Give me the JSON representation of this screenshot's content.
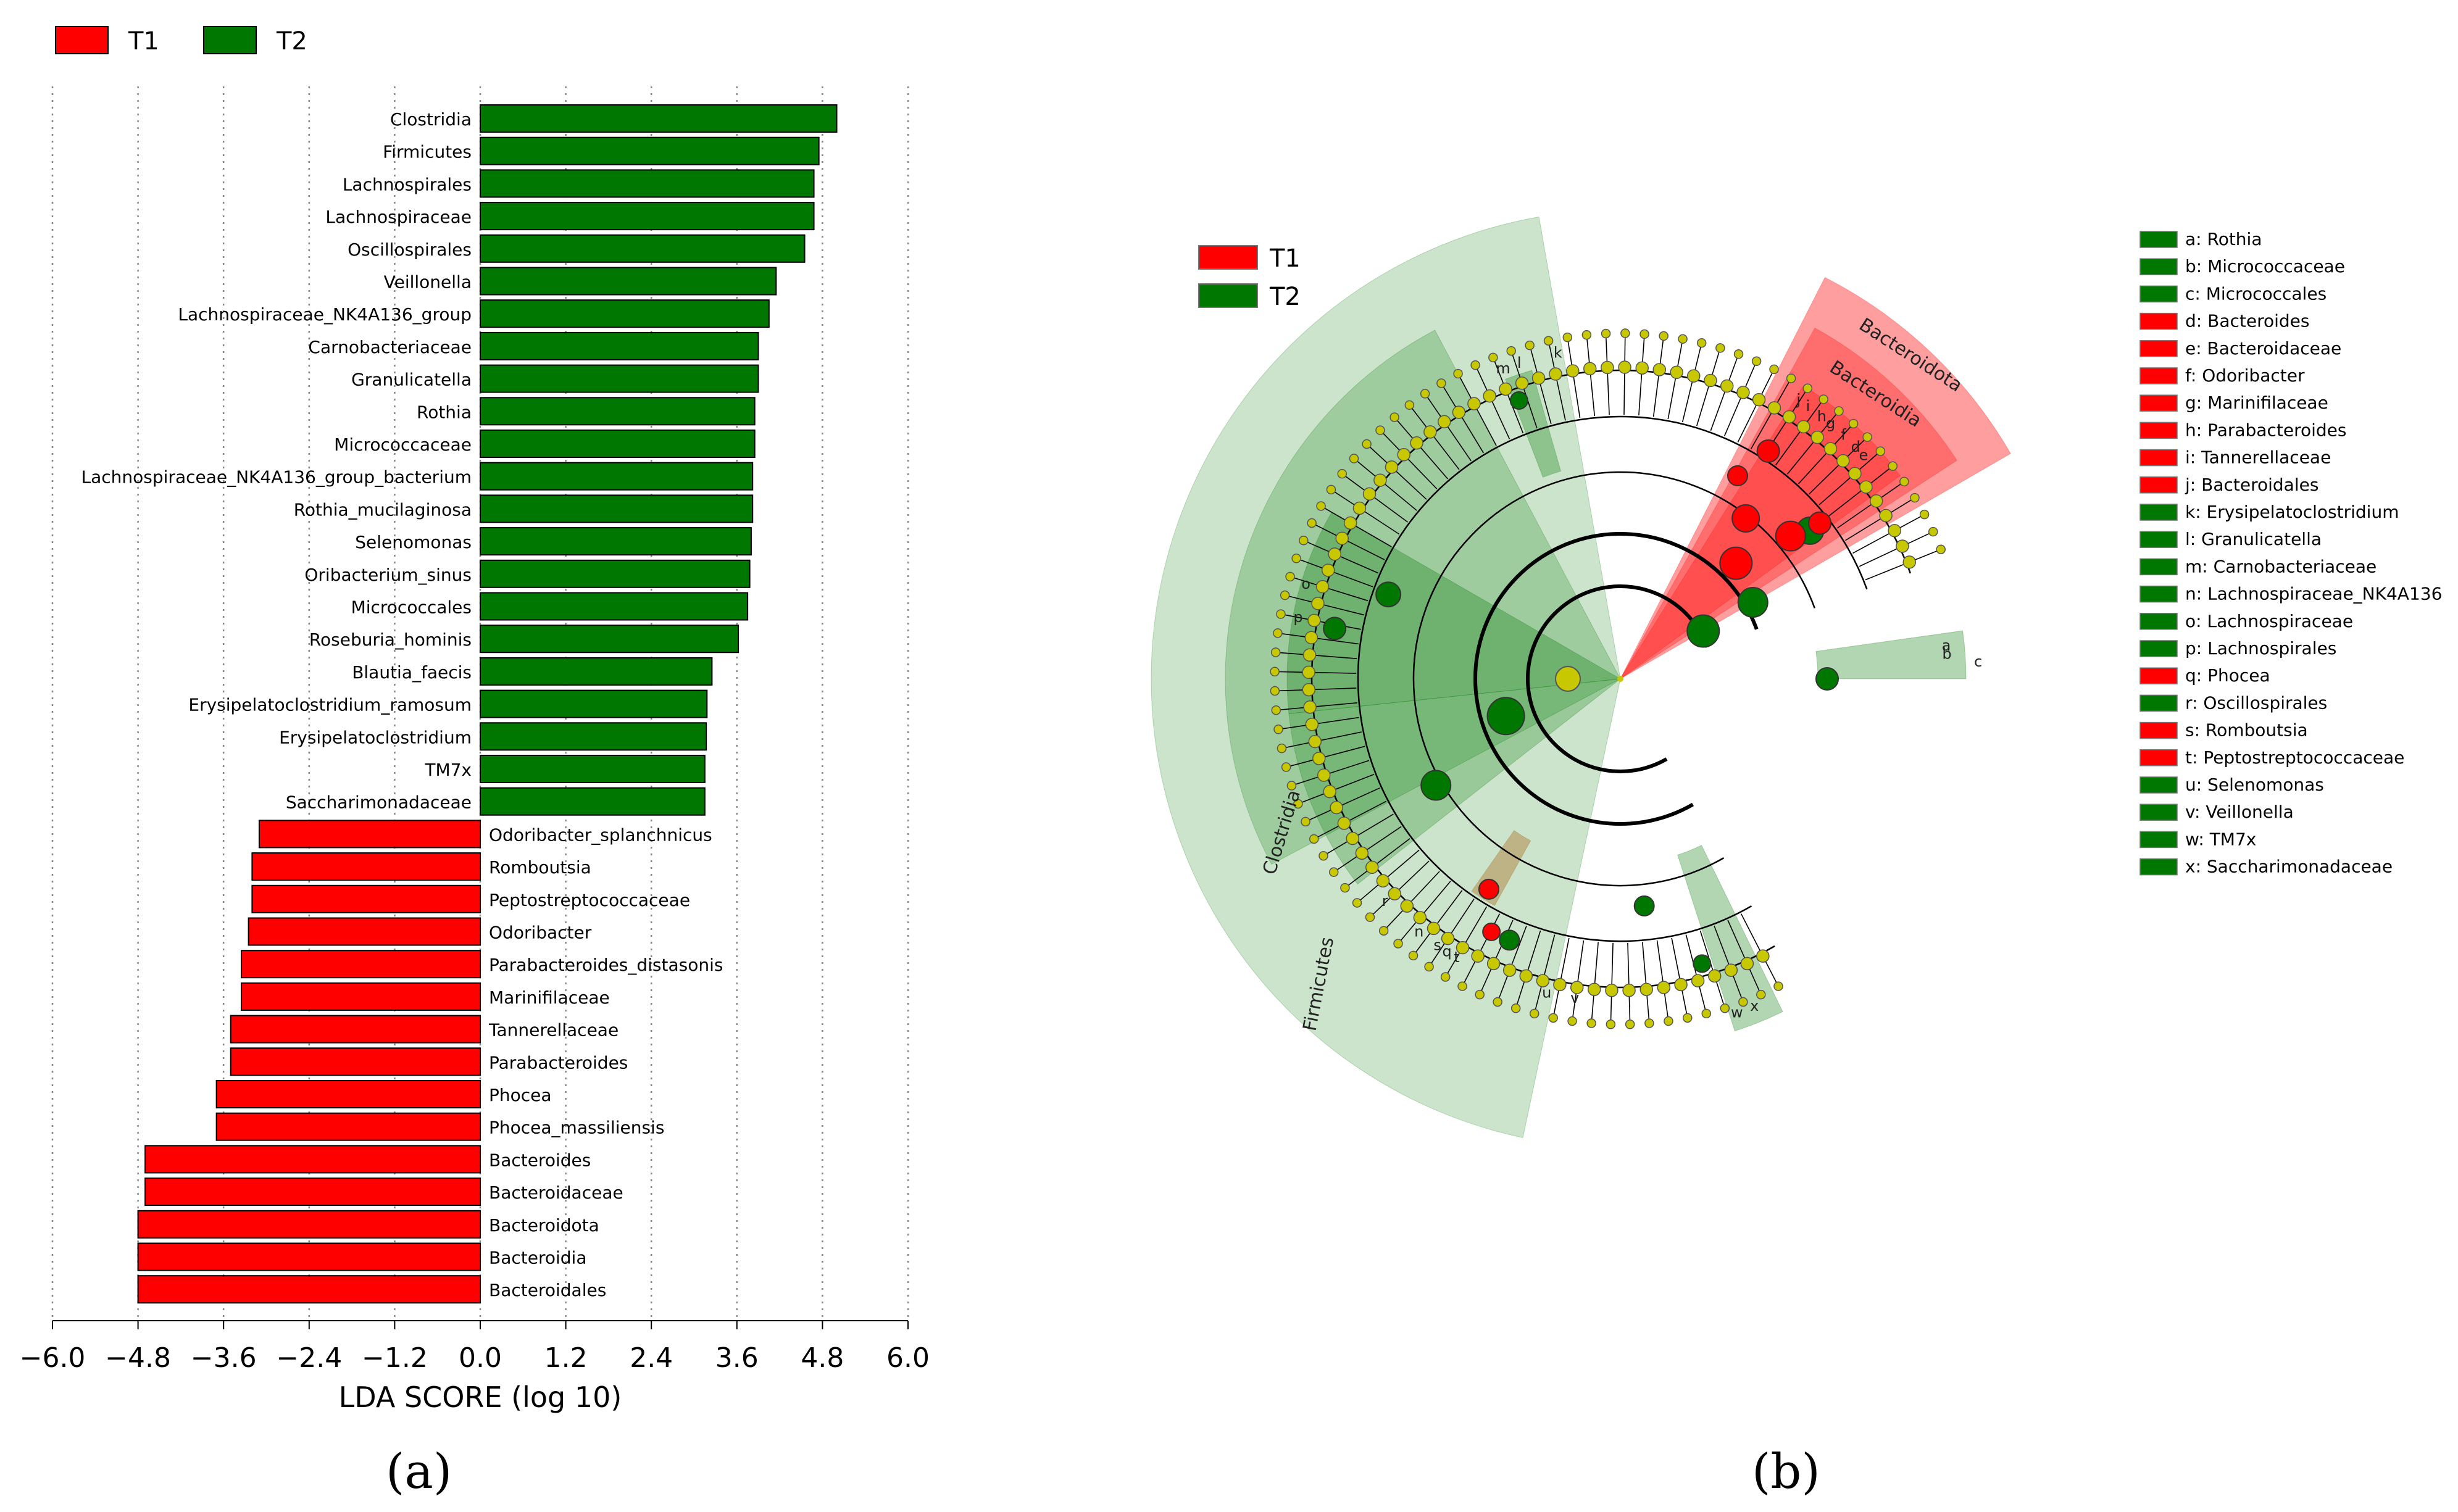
{
  "chart_data": [
    {
      "type": "bar",
      "orientation": "horizontal",
      "xlabel": "LDA SCORE (log 10)",
      "xlim": [
        -6.0,
        6.0
      ],
      "xticks": [
        "−6.0",
        "−4.8",
        "−3.6",
        "−2.4",
        "−1.2",
        "0.0",
        "1.2",
        "2.4",
        "3.6",
        "4.8",
        "6.0"
      ],
      "xtick_values": [
        -6.0,
        -4.8,
        -3.6,
        -2.4,
        -1.2,
        0.0,
        1.2,
        2.4,
        3.6,
        4.8,
        6.0
      ],
      "grid": "vertical dotted",
      "legend": [
        {
          "name": "T1",
          "color": "#ff0000"
        },
        {
          "name": "T2",
          "color": "#007700"
        }
      ],
      "bars": [
        {
          "label": "Clostridia",
          "value": 5.0,
          "group": "T2"
        },
        {
          "label": "Firmicutes",
          "value": 4.75,
          "group": "T2"
        },
        {
          "label": "Lachnospirales",
          "value": 4.68,
          "group": "T2"
        },
        {
          "label": "Lachnospiraceae",
          "value": 4.68,
          "group": "T2"
        },
        {
          "label": "Oscillospirales",
          "value": 4.55,
          "group": "T2"
        },
        {
          "label": "Veillonella",
          "value": 4.15,
          "group": "T2"
        },
        {
          "label": "Lachnospiraceae_NK4A136_group",
          "value": 4.05,
          "group": "T2"
        },
        {
          "label": "Carnobacteriaceae",
          "value": 3.9,
          "group": "T2"
        },
        {
          "label": "Granulicatella",
          "value": 3.9,
          "group": "T2"
        },
        {
          "label": "Rothia",
          "value": 3.85,
          "group": "T2"
        },
        {
          "label": "Micrococcaceae",
          "value": 3.85,
          "group": "T2"
        },
        {
          "label": "Lachnospiraceae_NK4A136_group_bacterium",
          "value": 3.82,
          "group": "T2"
        },
        {
          "label": "Rothia_mucilaginosa",
          "value": 3.82,
          "group": "T2"
        },
        {
          "label": "Selenomonas",
          "value": 3.8,
          "group": "T2"
        },
        {
          "label": "Oribacterium_sinus",
          "value": 3.78,
          "group": "T2"
        },
        {
          "label": "Micrococcales",
          "value": 3.75,
          "group": "T2"
        },
        {
          "label": "Roseburia_hominis",
          "value": 3.62,
          "group": "T2"
        },
        {
          "label": "Blautia_faecis",
          "value": 3.25,
          "group": "T2"
        },
        {
          "label": "Erysipelatoclostridium_ramosum",
          "value": 3.18,
          "group": "T2"
        },
        {
          "label": "Erysipelatoclostridium",
          "value": 3.17,
          "group": "T2"
        },
        {
          "label": "TM7x",
          "value": 3.15,
          "group": "T2"
        },
        {
          "label": "Saccharimonadaceae",
          "value": 3.15,
          "group": "T2"
        },
        {
          "label": "Odoribacter_splanchnicus",
          "value": -3.1,
          "group": "T1"
        },
        {
          "label": "Romboutsia",
          "value": -3.2,
          "group": "T1"
        },
        {
          "label": "Peptostreptococcaceae",
          "value": -3.2,
          "group": "T1"
        },
        {
          "label": "Odoribacter",
          "value": -3.25,
          "group": "T1"
        },
        {
          "label": "Parabacteroides_distasonis",
          "value": -3.35,
          "group": "T1"
        },
        {
          "label": "Marinifilaceae",
          "value": -3.35,
          "group": "T1"
        },
        {
          "label": "Tannerellaceae",
          "value": -3.5,
          "group": "T1"
        },
        {
          "label": "Parabacteroides",
          "value": -3.5,
          "group": "T1"
        },
        {
          "label": "Phocea",
          "value": -3.7,
          "group": "T1"
        },
        {
          "label": "Phocea_massiliensis",
          "value": -3.7,
          "group": "T1"
        },
        {
          "label": "Bacteroides",
          "value": -4.7,
          "group": "T1"
        },
        {
          "label": "Bacteroidaceae",
          "value": -4.7,
          "group": "T1"
        },
        {
          "label": "Bacteroidota",
          "value": -4.8,
          "group": "T1"
        },
        {
          "label": "Bacteroidia",
          "value": -4.8,
          "group": "T1"
        },
        {
          "label": "Bacteroidales",
          "value": -4.8,
          "group": "T1"
        }
      ]
    },
    {
      "type": "other",
      "subtype": "cladogram",
      "legend_groups": [
        {
          "name": "T1",
          "color": "#ff0000"
        },
        {
          "name": "T2",
          "color": "#007700"
        }
      ],
      "clade_labels": [
        "Firmicutes",
        "Clostridia",
        "Bacteroidota",
        "Bacteroidia"
      ],
      "node_letters": [
        "a",
        "b",
        "c",
        "d",
        "e",
        "f",
        "g",
        "h",
        "i",
        "j",
        "k",
        "l",
        "m",
        "n",
        "o",
        "p",
        "q",
        "r",
        "s",
        "t",
        "u",
        "v",
        "w",
        "x"
      ],
      "key": [
        {
          "text": "a: Rothia",
          "group": "T2"
        },
        {
          "text": "b: Micrococcaceae",
          "group": "T2"
        },
        {
          "text": "c: Micrococcales",
          "group": "T2"
        },
        {
          "text": "d: Bacteroides",
          "group": "T1"
        },
        {
          "text": "e: Bacteroidaceae",
          "group": "T1"
        },
        {
          "text": "f: Odoribacter",
          "group": "T1"
        },
        {
          "text": "g: Marinifilaceae",
          "group": "T1"
        },
        {
          "text": "h: Parabacteroides",
          "group": "T1"
        },
        {
          "text": "i: Tannerellaceae",
          "group": "T1"
        },
        {
          "text": "j: Bacteroidales",
          "group": "T1"
        },
        {
          "text": "k: Erysipelatoclostridium",
          "group": "T2"
        },
        {
          "text": "l: Granulicatella",
          "group": "T2"
        },
        {
          "text": "m: Carnobacteriaceae",
          "group": "T2"
        },
        {
          "text": "n: Lachnospiraceae_NK4A136",
          "group": "T2"
        },
        {
          "text": "o: Lachnospiraceae",
          "group": "T2"
        },
        {
          "text": "p: Lachnospirales",
          "group": "T2"
        },
        {
          "text": "q: Phocea",
          "group": "T1"
        },
        {
          "text": "r: Oscillospirales",
          "group": "T2"
        },
        {
          "text": "s: Romboutsia",
          "group": "T1"
        },
        {
          "text": "t: Peptostreptococcaceae",
          "group": "T1"
        },
        {
          "text": "u: Selenomonas",
          "group": "T2"
        },
        {
          "text": "v: Veillonella",
          "group": "T2"
        },
        {
          "text": "w: TM7x",
          "group": "T2"
        },
        {
          "text": "x: Saccharimonadaceae",
          "group": "T2"
        }
      ]
    }
  ],
  "panel_labels": {
    "a": "(a)",
    "b": "(b)"
  },
  "colors": {
    "t1": "#ff0000",
    "t2": "#007700",
    "node": "#c8c800",
    "grid": "#999999"
  }
}
